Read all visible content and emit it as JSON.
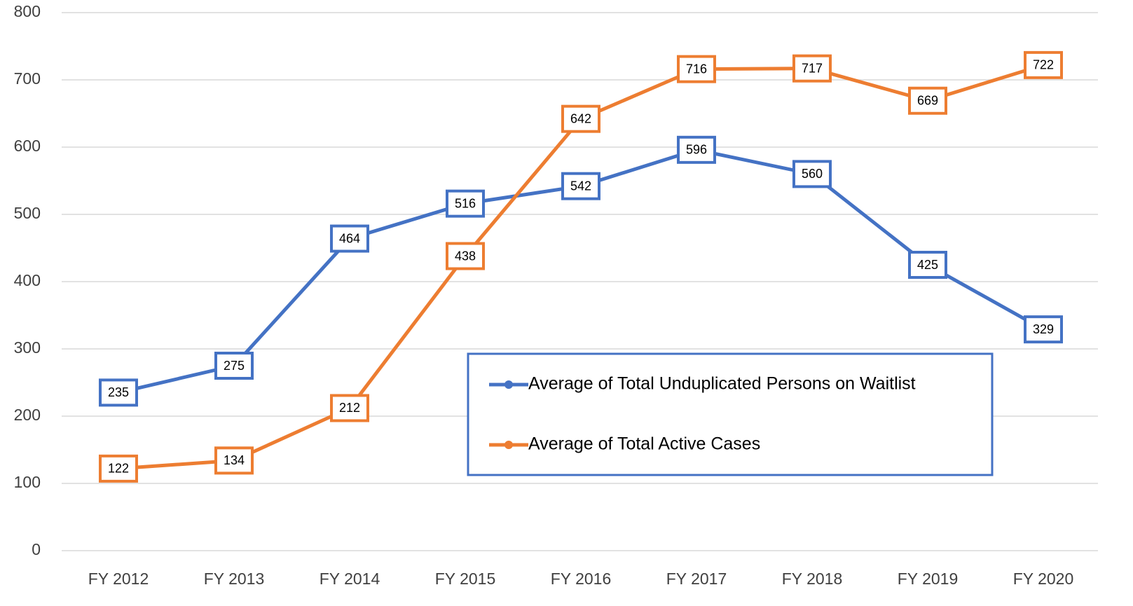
{
  "chart_data": {
    "type": "line",
    "categories": [
      "FY 2012",
      "FY 2013",
      "FY 2014",
      "FY 2015",
      "FY 2016",
      "FY 2017",
      "FY 2018",
      "FY 2019",
      "FY 2020"
    ],
    "series": [
      {
        "name": "Average of Total Unduplicated Persons on Waitlist",
        "color": "#4472c4",
        "values": [
          235,
          275,
          464,
          516,
          542,
          596,
          560,
          425,
          329
        ]
      },
      {
        "name": "Average of Total Active Cases",
        "color": "#ed7d31",
        "values": [
          122,
          134,
          212,
          438,
          642,
          716,
          717,
          669,
          722
        ]
      }
    ],
    "ylim": [
      0,
      800
    ],
    "yticks": [
      0,
      100,
      200,
      300,
      400,
      500,
      600,
      700,
      800
    ],
    "grid": true,
    "legend": "lower right",
    "data_labels": true
  }
}
